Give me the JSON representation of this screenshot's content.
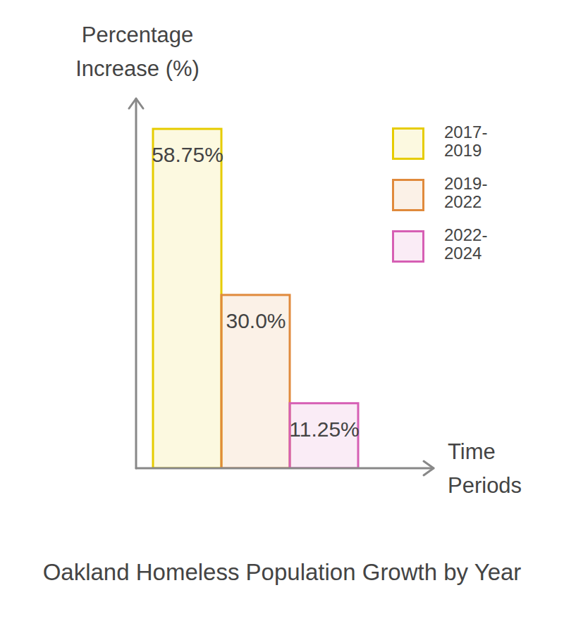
{
  "chart_data": {
    "type": "bar",
    "title": "Oakland Homeless Population Growth by Year",
    "ylabel": "Percentage Increase (%)",
    "xlabel": "Time Periods",
    "categories": [
      "2017-2019",
      "2019-2022",
      "2022-2024"
    ],
    "values": [
      58.75,
      30,
      11.25
    ],
    "value_labels": [
      "58.75%",
      "30.0%",
      "11.25%"
    ],
    "colors": [
      "#e6cc00",
      "#e08a3c",
      "#d65fb4"
    ],
    "ylim": [
      0,
      64
    ],
    "yticks": [],
    "grid": false,
    "data_labels": true,
    "tick_labels": false,
    "legend": "right"
  }
}
